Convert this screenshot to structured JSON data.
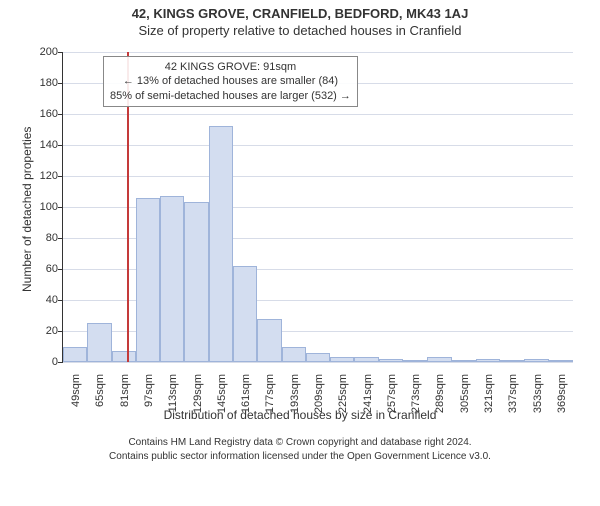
{
  "header": {
    "address": "42, KINGS GROVE, CRANFIELD, BEDFORD, MK43 1AJ",
    "subtitle": "Size of property relative to detached houses in Cranfield"
  },
  "chart": {
    "type": "histogram",
    "ylabel": "Number of detached properties",
    "xlabel": "Distribution of detached houses by size in Cranfield",
    "background_color": "#ffffff",
    "grid_color": "#d7dce8",
    "axis_color": "#333333",
    "label_color": "#333333",
    "label_fontsize": 12,
    "tick_fontsize": 11,
    "ylim": [
      0,
      200
    ],
    "ytick_step": 20,
    "bar_fill": "#d3ddf0",
    "bar_stroke": "#9fb4da",
    "bar_width": 1.0,
    "bins": [
      {
        "label": "49sqm",
        "value": 10
      },
      {
        "label": "65sqm",
        "value": 25
      },
      {
        "label": "81sqm",
        "value": 7
      },
      {
        "label": "97sqm",
        "value": 106
      },
      {
        "label": "113sqm",
        "value": 107
      },
      {
        "label": "129sqm",
        "value": 103
      },
      {
        "label": "145sqm",
        "value": 152
      },
      {
        "label": "161sqm",
        "value": 62
      },
      {
        "label": "177sqm",
        "value": 28
      },
      {
        "label": "193sqm",
        "value": 10
      },
      {
        "label": "209sqm",
        "value": 6
      },
      {
        "label": "225sqm",
        "value": 3
      },
      {
        "label": "241sqm",
        "value": 3
      },
      {
        "label": "257sqm",
        "value": 2
      },
      {
        "label": "273sqm",
        "value": 1
      },
      {
        "label": "289sqm",
        "value": 3
      },
      {
        "label": "305sqm",
        "value": 0
      },
      {
        "label": "321sqm",
        "value": 2
      },
      {
        "label": "337sqm",
        "value": 1
      },
      {
        "label": "353sqm",
        "value": 2
      },
      {
        "label": "369sqm",
        "value": 0
      }
    ],
    "marker": {
      "color": "#c43a3a",
      "bin_position": 2.63,
      "annotation_lines": [
        "42 KINGS GROVE: 91sqm",
        "← 13% of detached houses are smaller (84)",
        "85% of semi-detached houses are larger (532) →"
      ]
    }
  },
  "footer": {
    "line1": "Contains HM Land Registry data © Crown copyright and database right 2024.",
    "line2": "Contains public sector information licensed under the Open Government Licence v3.0."
  }
}
